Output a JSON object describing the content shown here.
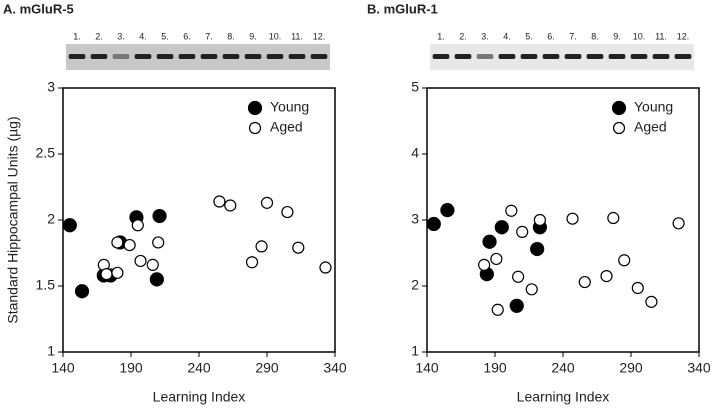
{
  "chart_data": [
    {
      "type": "scatter",
      "title": "A. mGluR-5",
      "lane_labels": [
        "1.",
        "2.",
        "3.",
        "4.",
        "5.",
        "6.",
        "7.",
        "8.",
        "9.",
        "10.",
        "11.",
        "12."
      ],
      "xlabel": "Learning Index",
      "ylabel": "Standard Hippocampal Units (µg)",
      "xlim": [
        140,
        340
      ],
      "xticks": [
        140,
        190,
        240,
        290,
        340
      ],
      "ylim": [
        1,
        3
      ],
      "yticks": [
        1,
        {
          "value": 1.5,
          "label": "1.5"
        },
        2,
        {
          "value": 2.5,
          "label": "2.5"
        },
        3
      ],
      "legend": "upper right",
      "series": [
        {
          "name": "Young",
          "color": "#000000",
          "filled": true,
          "x": [
            145,
            154,
            170,
            175,
            182,
            194,
            209,
            211
          ],
          "values": [
            1.96,
            1.46,
            1.58,
            1.58,
            1.83,
            2.02,
            1.55,
            2.03
          ]
        },
        {
          "name": "Aged",
          "color": "#000000",
          "filled": false,
          "x": [
            170,
            172,
            180,
            180,
            189,
            195,
            197,
            206,
            210,
            255,
            263,
            279,
            286,
            290,
            305,
            313,
            333
          ],
          "values": [
            1.66,
            1.59,
            1.83,
            1.6,
            1.81,
            1.96,
            1.69,
            1.66,
            1.83,
            2.14,
            2.11,
            1.68,
            1.8,
            2.13,
            2.06,
            1.79,
            1.64
          ]
        }
      ]
    },
    {
      "type": "scatter",
      "title": "B. mGluR-1",
      "lane_labels": [
        "1.",
        "2.",
        "3.",
        "4.",
        "5.",
        "6.",
        "7.",
        "8.",
        "9.",
        "10.",
        "11.",
        "12."
      ],
      "xlabel": "Learning Index",
      "xlim": [
        140,
        340
      ],
      "xticks": [
        140,
        190,
        240,
        290,
        340
      ],
      "ylim": [
        1,
        5
      ],
      "yticks": [
        1,
        2,
        3,
        4,
        5
      ],
      "legend": "upper right",
      "series": [
        {
          "name": "Young",
          "color": "#000000",
          "filled": true,
          "x": [
            145,
            155,
            186,
            195,
            184,
            206,
            221,
            223
          ],
          "values": [
            2.94,
            3.15,
            2.67,
            2.89,
            2.18,
            1.7,
            2.56,
            2.89
          ]
        },
        {
          "name": "Aged",
          "color": "#000000",
          "filled": false,
          "x": [
            182,
            191,
            202,
            210,
            192,
            207,
            217,
            223,
            247,
            256,
            277,
            272,
            285,
            295,
            305,
            325
          ],
          "values": [
            2.32,
            2.41,
            3.14,
            2.82,
            1.64,
            2.14,
            1.95,
            3.0,
            3.02,
            2.06,
            3.03,
            2.15,
            2.39,
            1.97,
            1.76,
            2.95
          ]
        }
      ]
    }
  ]
}
